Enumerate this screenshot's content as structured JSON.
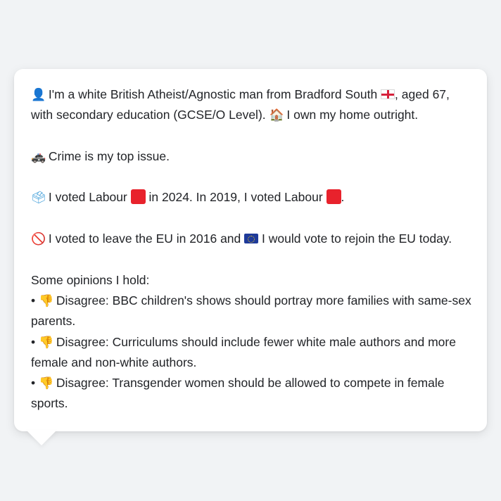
{
  "card": {
    "line1_a": "I'm a white British Atheist/Agnostic man from Bradford South",
    "line1_b": ", aged 67, with secondary education (GCSE/O Level).",
    "line1_c": "I own my home outright.",
    "line2": "Crime is my top issue.",
    "line3_a": "I voted Labour",
    "line3_b": "in 2024. In 2019, I voted Labour",
    "line3_c": ".",
    "line4_a": "I voted to leave the EU in 2016 and",
    "line4_b": "I would vote to rejoin the EU today.",
    "opinions_heading": "Some opinions I hold:",
    "opinions": [
      {
        "bullet": "•",
        "stance": "Disagree:",
        "text": "BBC children's shows should portray more families with same-sex parents."
      },
      {
        "bullet": "•",
        "stance": "Disagree:",
        "text": "Curriculums should include fewer white male authors and more female and non-white authors."
      },
      {
        "bullet": "•",
        "stance": "Disagree:",
        "text": "Transgender women should be allowed to compete in female sports."
      }
    ]
  },
  "icons": {
    "person": "👤",
    "house": "🏠",
    "police_car": "🚓",
    "ballot": "🗳",
    "no_entry": "🚫",
    "thumbs_down": "👎",
    "england_flag": "england-flag-icon",
    "eu_flag": "eu-flag-icon",
    "labour_square": "red-square-icon"
  },
  "colors": {
    "background": "#f1f3f5",
    "card": "#ffffff",
    "text": "#222428",
    "labour_red": "#e8222c",
    "eu_blue": "#1e3a9a"
  }
}
